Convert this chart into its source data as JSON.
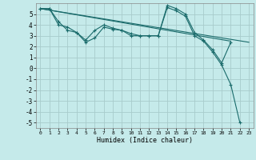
{
  "xlabel": "Humidex (Indice chaleur)",
  "background_color": "#c5eaea",
  "grid_color": "#a8cccc",
  "line_color": "#1a6b6b",
  "xlim_min": -0.5,
  "xlim_max": 23.5,
  "ylim_min": -5.5,
  "ylim_max": 6.0,
  "yticks": [
    -5,
    -4,
    -3,
    -2,
    -1,
    0,
    1,
    2,
    3,
    4,
    5
  ],
  "xticks": [
    0,
    1,
    2,
    3,
    4,
    5,
    6,
    7,
    8,
    9,
    10,
    11,
    12,
    13,
    14,
    15,
    16,
    17,
    18,
    19,
    20,
    21,
    22,
    23
  ],
  "line1_x": [
    0,
    1,
    2,
    3,
    4,
    5,
    6,
    7,
    8,
    9,
    10,
    11,
    12,
    13,
    14,
    15,
    16,
    17,
    18,
    19,
    20,
    21,
    22
  ],
  "line1_y": [
    5.5,
    5.5,
    4.3,
    3.5,
    3.3,
    2.4,
    2.8,
    3.8,
    3.6,
    3.5,
    3.0,
    3.0,
    3.0,
    3.0,
    5.6,
    5.3,
    4.8,
    3.0,
    2.5,
    1.5,
    0.3,
    -1.5,
    -5.0
  ],
  "line2_x": [
    0,
    1,
    2,
    3,
    4,
    5,
    6,
    7,
    8,
    9,
    10,
    11,
    12,
    13,
    14,
    15,
    16,
    17,
    18,
    19,
    20,
    21
  ],
  "line2_y": [
    5.5,
    5.5,
    4.0,
    3.8,
    3.3,
    2.6,
    3.5,
    4.0,
    3.7,
    3.5,
    3.2,
    3.0,
    3.0,
    3.0,
    5.8,
    5.5,
    5.0,
    3.3,
    2.6,
    1.7,
    0.5,
    2.4
  ],
  "trend1_x": [
    0,
    23
  ],
  "trend1_y": [
    5.5,
    2.4
  ],
  "trend2_x": [
    0,
    21
  ],
  "trend2_y": [
    5.5,
    2.5
  ]
}
